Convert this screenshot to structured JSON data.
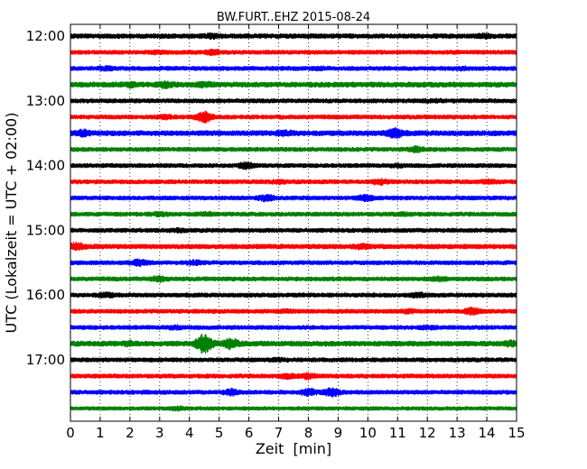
{
  "chart_data": {
    "type": "line",
    "title": "BW.FURT..EHZ 2015-08-24",
    "xlabel": "Zeit  [min]",
    "ylabel": "UTC (Lokalzeit = UTC + 02:00)",
    "xlim": [
      0,
      15
    ],
    "xticks": [
      "0",
      "1",
      "2",
      "3",
      "4",
      "5",
      "6",
      "7",
      "8",
      "9",
      "10",
      "11",
      "12",
      "13",
      "14",
      "15"
    ],
    "yticks": [
      "12:00",
      "13:00",
      "14:00",
      "15:00",
      "16:00",
      "17:00"
    ],
    "grid": "vertical dotted at each minute",
    "colors_cycle": [
      "#000000",
      "#ff0000",
      "#0000ff",
      "#008000"
    ],
    "row_interval_minutes": 15,
    "series": [
      {
        "start": "12:00",
        "color": "#000000",
        "amplitude": 0.55,
        "events": [
          {
            "t": 4.8,
            "a": 0.25
          },
          {
            "t": 13.9,
            "a": 0.2
          }
        ]
      },
      {
        "start": "12:15",
        "color": "#ff0000",
        "amplitude": 0.5,
        "events": [
          {
            "t": 4.8,
            "a": 0.3
          },
          {
            "t": 3.0,
            "a": 0.15
          }
        ]
      },
      {
        "start": "12:30",
        "color": "#0000ff",
        "amplitude": 0.5,
        "events": [
          {
            "t": 1.2,
            "a": 0.2
          },
          {
            "t": 8.4,
            "a": 0.15
          },
          {
            "t": 13.2,
            "a": 0.15
          }
        ]
      },
      {
        "start": "12:45",
        "color": "#008000",
        "amplitude": 0.6,
        "events": [
          {
            "t": 3.2,
            "a": 0.35
          },
          {
            "t": 4.5,
            "a": 0.25
          },
          {
            "t": 2.0,
            "a": 0.2
          }
        ]
      },
      {
        "start": "13:00",
        "color": "#000000",
        "amplitude": 0.5,
        "events": [
          {
            "t": 12.2,
            "a": 0.15
          }
        ]
      },
      {
        "start": "13:15",
        "color": "#ff0000",
        "amplitude": 0.5,
        "events": [
          {
            "t": 4.5,
            "a": 0.8
          },
          {
            "t": 3.2,
            "a": 0.2
          }
        ]
      },
      {
        "start": "13:30",
        "color": "#0000ff",
        "amplitude": 0.6,
        "events": [
          {
            "t": 0.4,
            "a": 0.4
          },
          {
            "t": 10.9,
            "a": 0.7
          },
          {
            "t": 7.2,
            "a": 0.3
          }
        ]
      },
      {
        "start": "13:45",
        "color": "#008000",
        "amplitude": 0.5,
        "events": [
          {
            "t": 11.6,
            "a": 0.35
          }
        ]
      },
      {
        "start": "14:00",
        "color": "#000000",
        "amplitude": 0.5,
        "events": [
          {
            "t": 5.9,
            "a": 0.4
          },
          {
            "t": 11.0,
            "a": 0.15
          }
        ]
      },
      {
        "start": "14:15",
        "color": "#ff0000",
        "amplitude": 0.5,
        "events": [
          {
            "t": 10.4,
            "a": 0.35
          },
          {
            "t": 7.0,
            "a": 0.2
          },
          {
            "t": 14.1,
            "a": 0.2
          }
        ]
      },
      {
        "start": "14:30",
        "color": "#0000ff",
        "amplitude": 0.5,
        "events": [
          {
            "t": 6.6,
            "a": 0.45
          },
          {
            "t": 9.9,
            "a": 0.4
          }
        ]
      },
      {
        "start": "14:45",
        "color": "#008000",
        "amplitude": 0.5,
        "events": [
          {
            "t": 3.0,
            "a": 0.2
          },
          {
            "t": 4.6,
            "a": 0.2
          },
          {
            "t": 11.2,
            "a": 0.15
          }
        ]
      },
      {
        "start": "15:00",
        "color": "#000000",
        "amplitude": 0.5,
        "events": [
          {
            "t": 3.6,
            "a": 0.15
          }
        ]
      },
      {
        "start": "15:15",
        "color": "#ff0000",
        "amplitude": 0.55,
        "events": [
          {
            "t": 0.2,
            "a": 0.5
          },
          {
            "t": 9.8,
            "a": 0.25
          }
        ]
      },
      {
        "start": "15:30",
        "color": "#0000ff",
        "amplitude": 0.5,
        "events": [
          {
            "t": 2.3,
            "a": 0.4
          },
          {
            "t": 4.2,
            "a": 0.25
          }
        ]
      },
      {
        "start": "15:45",
        "color": "#008000",
        "amplitude": 0.5,
        "events": [
          {
            "t": 3.0,
            "a": 0.35
          },
          {
            "t": 12.4,
            "a": 0.2
          }
        ]
      },
      {
        "start": "16:00",
        "color": "#000000",
        "amplitude": 0.5,
        "events": [
          {
            "t": 1.2,
            "a": 0.3
          },
          {
            "t": 11.7,
            "a": 0.25
          }
        ]
      },
      {
        "start": "16:15",
        "color": "#ff0000",
        "amplitude": 0.5,
        "events": [
          {
            "t": 13.5,
            "a": 0.45
          },
          {
            "t": 11.4,
            "a": 0.2
          },
          {
            "t": 7.3,
            "a": 0.15
          }
        ]
      },
      {
        "start": "16:30",
        "color": "#0000ff",
        "amplitude": 0.5,
        "events": [
          {
            "t": 3.5,
            "a": 0.2
          },
          {
            "t": 12.0,
            "a": 0.2
          }
        ]
      },
      {
        "start": "16:45",
        "color": "#008000",
        "amplitude": 0.6,
        "events": [
          {
            "t": 4.5,
            "a": 1.6
          },
          {
            "t": 5.4,
            "a": 0.7
          },
          {
            "t": 2.0,
            "a": 0.2
          },
          {
            "t": 14.8,
            "a": 0.3
          }
        ]
      },
      {
        "start": "17:00",
        "color": "#000000",
        "amplitude": 0.5,
        "events": [
          {
            "t": 7.0,
            "a": 0.15
          }
        ]
      },
      {
        "start": "17:15",
        "color": "#ff0000",
        "amplitude": 0.5,
        "events": [
          {
            "t": 8.0,
            "a": 0.4
          },
          {
            "t": 7.3,
            "a": 0.3
          }
        ]
      },
      {
        "start": "17:30",
        "color": "#0000ff",
        "amplitude": 0.5,
        "events": [
          {
            "t": 5.4,
            "a": 0.4
          },
          {
            "t": 8.8,
            "a": 0.6
          },
          {
            "t": 8.0,
            "a": 0.5
          }
        ]
      },
      {
        "start": "17:45",
        "color": "#008000",
        "amplitude": 0.45,
        "events": [
          {
            "t": 3.6,
            "a": 0.25
          }
        ]
      }
    ]
  }
}
